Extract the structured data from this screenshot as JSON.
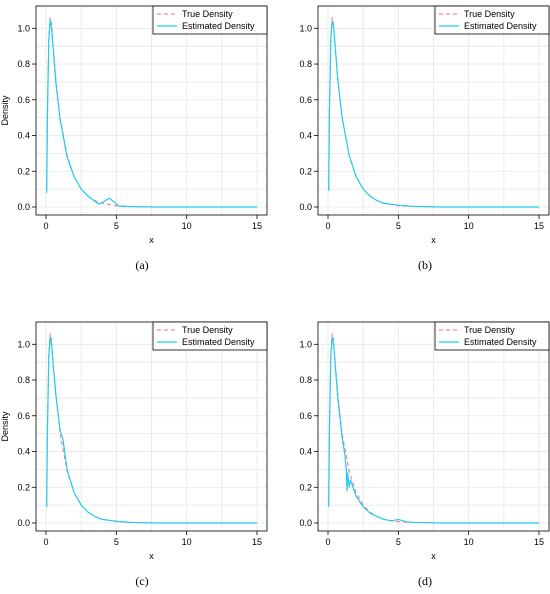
{
  "captions": [
    "(a)",
    "(b)",
    "(c)",
    "(d)"
  ],
  "legend": {
    "true_label": "True Density",
    "est_label": "Estimated Density"
  },
  "colors": {
    "true_density": "#ff66aa",
    "estimated_density": "#22ccee",
    "grid": "#e6e6e6",
    "axis": "#000000"
  },
  "chart_data": [
    {
      "panel": "a",
      "type": "line",
      "xlabel": "x",
      "ylabel": "Density",
      "xlim": [
        0,
        15
      ],
      "ylim": [
        0,
        1.08
      ],
      "xticks": [
        "0",
        "5",
        "10",
        "15"
      ],
      "yticks": [
        "0.0",
        "0.2",
        "0.4",
        "0.6",
        "0.8",
        "1.0"
      ],
      "grid": true,
      "legend_position": "top-right",
      "series": [
        {
          "name": "True Density",
          "style": "dashed",
          "x": [
            0.05,
            0.1,
            0.2,
            0.3,
            0.4,
            0.5,
            0.7,
            1.0,
            1.5,
            2.0,
            2.5,
            3.0,
            3.5,
            4.0,
            5.0,
            6.0,
            8.0,
            10.0,
            15.0
          ],
          "y": [
            0.1,
            0.55,
            0.95,
            1.06,
            1.02,
            0.92,
            0.72,
            0.5,
            0.29,
            0.17,
            0.1,
            0.06,
            0.035,
            0.02,
            0.008,
            0.003,
            0.0,
            0.0,
            0.0
          ]
        },
        {
          "name": "Estimated Density",
          "style": "solid",
          "x": [
            0.05,
            0.1,
            0.2,
            0.3,
            0.4,
            0.5,
            0.7,
            1.0,
            1.5,
            2.0,
            2.5,
            3.0,
            3.5,
            3.8,
            4.2,
            4.5,
            4.8,
            5.2,
            6.0,
            8.0,
            10.0,
            15.0
          ],
          "y": [
            0.08,
            0.5,
            0.93,
            1.05,
            1.0,
            0.9,
            0.7,
            0.49,
            0.28,
            0.17,
            0.1,
            0.06,
            0.03,
            0.015,
            0.035,
            0.05,
            0.03,
            0.005,
            0.002,
            0.0,
            0.0,
            0.0
          ]
        }
      ]
    },
    {
      "panel": "b",
      "type": "line",
      "xlabel": "x",
      "ylabel": "",
      "xlim": [
        0,
        15
      ],
      "ylim": [
        0,
        1.08
      ],
      "xticks": [
        "0",
        "5",
        "10",
        "15"
      ],
      "yticks": [
        "0.0",
        "0.2",
        "0.4",
        "0.6",
        "0.8",
        "1.0"
      ],
      "grid": true,
      "legend_position": "top-right",
      "series": [
        {
          "name": "True Density",
          "style": "dashed",
          "x": [
            0.05,
            0.1,
            0.2,
            0.3,
            0.4,
            0.5,
            0.7,
            1.0,
            1.5,
            2.0,
            2.5,
            3.0,
            3.5,
            4.0,
            5.0,
            6.0,
            8.0,
            10.0,
            15.0
          ],
          "y": [
            0.1,
            0.55,
            0.95,
            1.06,
            1.02,
            0.92,
            0.72,
            0.5,
            0.29,
            0.17,
            0.1,
            0.06,
            0.035,
            0.02,
            0.008,
            0.003,
            0.0,
            0.0,
            0.0
          ]
        },
        {
          "name": "Estimated Density",
          "style": "solid",
          "x": [
            0.05,
            0.1,
            0.2,
            0.3,
            0.4,
            0.5,
            0.7,
            1.0,
            1.5,
            2.0,
            2.5,
            3.0,
            3.5,
            4.0,
            5.0,
            6.0,
            8.0,
            10.0,
            15.0
          ],
          "y": [
            0.09,
            0.52,
            0.94,
            1.04,
            1.01,
            0.91,
            0.71,
            0.5,
            0.29,
            0.17,
            0.1,
            0.06,
            0.035,
            0.02,
            0.01,
            0.004,
            0.0,
            0.0,
            0.0
          ]
        }
      ]
    },
    {
      "panel": "c",
      "type": "line",
      "xlabel": "x",
      "ylabel": "Density",
      "xlim": [
        0,
        15
      ],
      "ylim": [
        0,
        1.08
      ],
      "xticks": [
        "0",
        "5",
        "10",
        "15"
      ],
      "yticks": [
        "0.0",
        "0.2",
        "0.4",
        "0.6",
        "0.8",
        "1.0"
      ],
      "grid": true,
      "legend_position": "top-right",
      "series": [
        {
          "name": "True Density",
          "style": "dashed",
          "x": [
            0.05,
            0.1,
            0.2,
            0.3,
            0.4,
            0.5,
            0.7,
            1.0,
            1.5,
            2.0,
            2.5,
            3.0,
            3.5,
            4.0,
            5.0,
            6.0,
            8.0,
            10.0,
            15.0
          ],
          "y": [
            0.1,
            0.55,
            0.95,
            1.06,
            1.02,
            0.92,
            0.72,
            0.5,
            0.29,
            0.17,
            0.1,
            0.06,
            0.035,
            0.02,
            0.008,
            0.003,
            0.0,
            0.0,
            0.0
          ]
        },
        {
          "name": "Estimated Density",
          "style": "solid",
          "x": [
            0.05,
            0.1,
            0.2,
            0.3,
            0.4,
            0.5,
            0.7,
            1.0,
            1.2,
            1.5,
            2.0,
            2.5,
            3.0,
            3.5,
            4.0,
            5.0,
            6.0,
            8.0,
            10.0,
            15.0
          ],
          "y": [
            0.09,
            0.5,
            0.93,
            1.04,
            1.0,
            0.9,
            0.72,
            0.52,
            0.47,
            0.3,
            0.17,
            0.1,
            0.06,
            0.035,
            0.02,
            0.01,
            0.004,
            0.0,
            0.0,
            0.0
          ]
        }
      ]
    },
    {
      "panel": "d",
      "type": "line",
      "xlabel": "x",
      "ylabel": "",
      "xlim": [
        0,
        15
      ],
      "ylim": [
        0,
        1.08
      ],
      "xticks": [
        "0",
        "5",
        "10",
        "15"
      ],
      "yticks": [
        "0.0",
        "0.2",
        "0.4",
        "0.6",
        "0.8",
        "1.0"
      ],
      "grid": true,
      "legend_position": "top-right",
      "series": [
        {
          "name": "True Density",
          "style": "dashed",
          "x": [
            0.05,
            0.1,
            0.2,
            0.3,
            0.4,
            0.5,
            0.7,
            1.0,
            1.5,
            2.0,
            2.5,
            3.0,
            3.5,
            4.0,
            5.0,
            6.0,
            8.0,
            10.0,
            15.0
          ],
          "y": [
            0.1,
            0.55,
            0.95,
            1.06,
            1.02,
            0.92,
            0.72,
            0.5,
            0.29,
            0.17,
            0.1,
            0.06,
            0.035,
            0.02,
            0.008,
            0.003,
            0.0,
            0.0,
            0.0
          ]
        },
        {
          "name": "Estimated Density",
          "style": "solid",
          "x": [
            0.05,
            0.1,
            0.2,
            0.3,
            0.4,
            0.5,
            0.7,
            1.0,
            1.2,
            1.3,
            1.35,
            1.4,
            1.5,
            1.6,
            2.0,
            2.5,
            3.0,
            3.5,
            4.0,
            4.5,
            5.0,
            5.5,
            6.0,
            8.0,
            10.0,
            15.0
          ],
          "y": [
            0.09,
            0.5,
            0.93,
            1.04,
            1.0,
            0.9,
            0.7,
            0.48,
            0.38,
            0.3,
            0.18,
            0.28,
            0.2,
            0.24,
            0.15,
            0.09,
            0.055,
            0.035,
            0.02,
            0.012,
            0.02,
            0.008,
            0.004,
            0.0,
            0.0,
            0.0
          ]
        }
      ]
    }
  ]
}
